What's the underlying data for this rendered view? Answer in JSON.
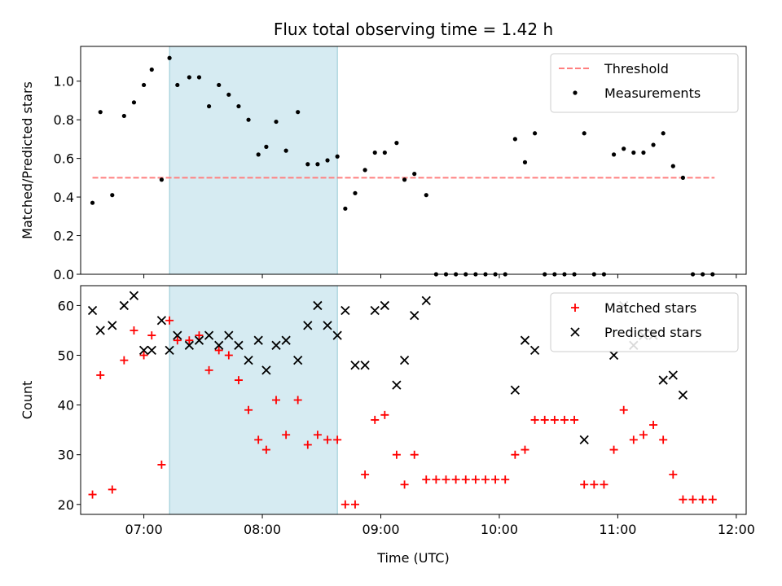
{
  "chart_data": [
    {
      "type": "scatter",
      "title": "Flux total observing time = 1.42 h",
      "xlabel": "",
      "ylabel": "Matched/Predicted stars",
      "xlim": [
        "06:28",
        "12:05"
      ],
      "ylim": [
        0,
        1.18
      ],
      "x_ticks": [
        "07:00",
        "08:00",
        "09:00",
        "10:00",
        "11:00",
        "12:00"
      ],
      "y_ticks": [
        "0.0",
        "0.2",
        "0.4",
        "0.6",
        "0.8",
        "1.0"
      ],
      "shaded_span": [
        "07:13",
        "08:38"
      ],
      "legend_position": "top-right",
      "colors": {
        "threshold": "#ff7f7f",
        "measurements": "#000000",
        "span": "#add8e6"
      },
      "threshold": {
        "name": "Threshold",
        "value": 0.5,
        "x_start": "06:34",
        "x_end": "11:49"
      },
      "series": [
        {
          "name": "Measurements",
          "points": [
            [
              "06:34",
              0.37
            ],
            [
              "06:38",
              0.84
            ],
            [
              "06:44",
              0.41
            ],
            [
              "06:50",
              0.82
            ],
            [
              "06:55",
              0.89
            ],
            [
              "07:00",
              0.98
            ],
            [
              "07:04",
              1.06
            ],
            [
              "07:09",
              0.49
            ],
            [
              "07:13",
              1.12
            ],
            [
              "07:17",
              0.98
            ],
            [
              "07:23",
              1.02
            ],
            [
              "07:28",
              1.02
            ],
            [
              "07:33",
              0.87
            ],
            [
              "07:38",
              0.98
            ],
            [
              "07:43",
              0.93
            ],
            [
              "07:48",
              0.87
            ],
            [
              "07:53",
              0.8
            ],
            [
              "07:58",
              0.62
            ],
            [
              "08:02",
              0.66
            ],
            [
              "08:07",
              0.79
            ],
            [
              "08:12",
              0.64
            ],
            [
              "08:18",
              0.84
            ],
            [
              "08:23",
              0.57
            ],
            [
              "08:28",
              0.57
            ],
            [
              "08:33",
              0.59
            ],
            [
              "08:38",
              0.61
            ],
            [
              "08:42",
              0.34
            ],
            [
              "08:47",
              0.42
            ],
            [
              "08:52",
              0.54
            ],
            [
              "08:57",
              0.63
            ],
            [
              "09:02",
              0.63
            ],
            [
              "09:08",
              0.68
            ],
            [
              "09:12",
              0.49
            ],
            [
              "09:17",
              0.52
            ],
            [
              "09:23",
              0.41
            ],
            [
              "09:28",
              0.0
            ],
            [
              "09:33",
              0.0
            ],
            [
              "09:38",
              0.0
            ],
            [
              "09:43",
              0.0
            ],
            [
              "09:48",
              0.0
            ],
            [
              "09:53",
              0.0
            ],
            [
              "09:58",
              0.0
            ],
            [
              "10:03",
              0.0
            ],
            [
              "10:08",
              0.7
            ],
            [
              "10:13",
              0.58
            ],
            [
              "10:18",
              0.73
            ],
            [
              "10:23",
              0.0
            ],
            [
              "10:28",
              0.0
            ],
            [
              "10:33",
              0.0
            ],
            [
              "10:38",
              0.0
            ],
            [
              "10:43",
              0.73
            ],
            [
              "10:48",
              0.0
            ],
            [
              "10:53",
              0.0
            ],
            [
              "10:58",
              0.62
            ],
            [
              "11:03",
              0.65
            ],
            [
              "11:08",
              0.63
            ],
            [
              "11:13",
              0.63
            ],
            [
              "11:18",
              0.67
            ],
            [
              "11:23",
              0.73
            ],
            [
              "11:28",
              0.56
            ],
            [
              "11:33",
              0.5
            ],
            [
              "11:38",
              0.0
            ],
            [
              "11:43",
              0.0
            ],
            [
              "11:48",
              0.0
            ]
          ]
        }
      ]
    },
    {
      "type": "scatter",
      "title": "",
      "xlabel": "Time (UTC)",
      "ylabel": "Count",
      "xlim": [
        "06:28",
        "12:05"
      ],
      "ylim": [
        18,
        64
      ],
      "x_ticks": [
        "07:00",
        "08:00",
        "09:00",
        "10:00",
        "11:00",
        "12:00"
      ],
      "y_ticks": [
        "20",
        "30",
        "40",
        "50",
        "60"
      ],
      "shaded_span": [
        "07:13",
        "08:38"
      ],
      "legend_position": "top-right",
      "colors": {
        "matched": "#ff0000",
        "predicted": "#000000",
        "span": "#add8e6"
      },
      "series": [
        {
          "name": "Matched stars",
          "points": [
            [
              "06:34",
              22
            ],
            [
              "06:38",
              46
            ],
            [
              "06:44",
              23
            ],
            [
              "06:50",
              49
            ],
            [
              "06:55",
              55
            ],
            [
              "07:00",
              50
            ],
            [
              "07:04",
              54
            ],
            [
              "07:09",
              28
            ],
            [
              "07:13",
              57
            ],
            [
              "07:17",
              53
            ],
            [
              "07:23",
              53
            ],
            [
              "07:28",
              54
            ],
            [
              "07:33",
              47
            ],
            [
              "07:38",
              51
            ],
            [
              "07:43",
              50
            ],
            [
              "07:48",
              45
            ],
            [
              "07:53",
              39
            ],
            [
              "07:58",
              33
            ],
            [
              "08:02",
              31
            ],
            [
              "08:07",
              41
            ],
            [
              "08:12",
              34
            ],
            [
              "08:18",
              41
            ],
            [
              "08:23",
              32
            ],
            [
              "08:28",
              34
            ],
            [
              "08:33",
              33
            ],
            [
              "08:38",
              33
            ],
            [
              "08:42",
              20
            ],
            [
              "08:47",
              20
            ],
            [
              "08:52",
              26
            ],
            [
              "08:57",
              37
            ],
            [
              "09:02",
              38
            ],
            [
              "09:08",
              30
            ],
            [
              "09:12",
              24
            ],
            [
              "09:17",
              30
            ],
            [
              "09:23",
              25
            ],
            [
              "09:28",
              25
            ],
            [
              "09:33",
              25
            ],
            [
              "09:38",
              25
            ],
            [
              "09:43",
              25
            ],
            [
              "09:48",
              25
            ],
            [
              "09:53",
              25
            ],
            [
              "09:58",
              25
            ],
            [
              "10:03",
              25
            ],
            [
              "10:08",
              30
            ],
            [
              "10:13",
              31
            ],
            [
              "10:18",
              37
            ],
            [
              "10:23",
              37
            ],
            [
              "10:28",
              37
            ],
            [
              "10:33",
              37
            ],
            [
              "10:38",
              37
            ],
            [
              "10:43",
              24
            ],
            [
              "10:48",
              24
            ],
            [
              "10:53",
              24
            ],
            [
              "10:58",
              31
            ],
            [
              "11:03",
              39
            ],
            [
              "11:08",
              33
            ],
            [
              "11:13",
              34
            ],
            [
              "11:18",
              36
            ],
            [
              "11:23",
              33
            ],
            [
              "11:28",
              26
            ],
            [
              "11:33",
              21
            ],
            [
              "11:38",
              21
            ],
            [
              "11:43",
              21
            ],
            [
              "11:48",
              21
            ]
          ]
        },
        {
          "name": "Predicted stars",
          "points": [
            [
              "06:34",
              59
            ],
            [
              "06:38",
              55
            ],
            [
              "06:44",
              56
            ],
            [
              "06:50",
              60
            ],
            [
              "06:55",
              62
            ],
            [
              "07:00",
              51
            ],
            [
              "07:04",
              51
            ],
            [
              "07:09",
              57
            ],
            [
              "07:13",
              51
            ],
            [
              "07:17",
              54
            ],
            [
              "07:23",
              52
            ],
            [
              "07:28",
              53
            ],
            [
              "07:33",
              54
            ],
            [
              "07:38",
              52
            ],
            [
              "07:43",
              54
            ],
            [
              "07:48",
              52
            ],
            [
              "07:53",
              49
            ],
            [
              "07:58",
              53
            ],
            [
              "08:02",
              47
            ],
            [
              "08:07",
              52
            ],
            [
              "08:12",
              53
            ],
            [
              "08:18",
              49
            ],
            [
              "08:23",
              56
            ],
            [
              "08:28",
              60
            ],
            [
              "08:33",
              56
            ],
            [
              "08:38",
              54
            ],
            [
              "08:42",
              59
            ],
            [
              "08:52",
              48
            ],
            [
              "08:47",
              48
            ],
            [
              "08:57",
              59
            ],
            [
              "09:02",
              60
            ],
            [
              "09:08",
              44
            ],
            [
              "09:12",
              49
            ],
            [
              "09:17",
              58
            ],
            [
              "09:23",
              61
            ],
            [
              "10:08",
              43
            ],
            [
              "10:13",
              53
            ],
            [
              "10:18",
              51
            ],
            [
              "10:43",
              33
            ],
            [
              "10:58",
              50
            ],
            [
              "11:03",
              60
            ],
            [
              "11:08",
              52
            ],
            [
              "11:13",
              54
            ],
            [
              "11:18",
              54
            ],
            [
              "11:23",
              45
            ],
            [
              "11:28",
              46
            ],
            [
              "11:33",
              42
            ]
          ]
        }
      ]
    }
  ]
}
